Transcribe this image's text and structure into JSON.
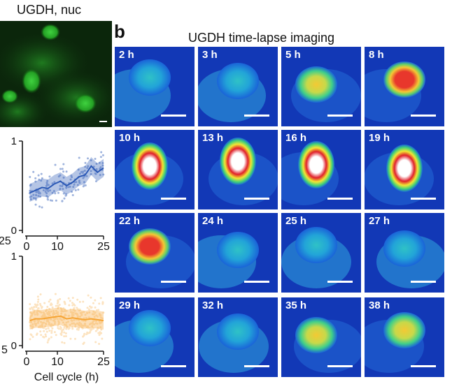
{
  "panel_a": {
    "micrograph_title": "UGDH, nuc"
  },
  "panel_b": {
    "letter": "b",
    "title": "UGDH time-lapse imaging",
    "tiles": [
      {
        "label": "2 h",
        "level": 0.15
      },
      {
        "label": "3 h",
        "level": 0.35
      },
      {
        "label": "5 h",
        "level": 0.55
      },
      {
        "label": "8 h",
        "level": 0.8
      },
      {
        "label": "10 h",
        "level": 1.0
      },
      {
        "label": "13 h",
        "level": 1.0
      },
      {
        "label": "16 h",
        "level": 1.0
      },
      {
        "label": "19 h",
        "level": 1.0
      },
      {
        "label": "22 h",
        "level": 0.85
      },
      {
        "label": "24 h",
        "level": 0.25
      },
      {
        "label": "25 h",
        "level": 0.35
      },
      {
        "label": "27 h",
        "level": 0.4
      },
      {
        "label": "29 h",
        "level": 0.35
      },
      {
        "label": "32 h",
        "level": 0.45
      },
      {
        "label": "35 h",
        "level": 0.5
      },
      {
        "label": "38 h",
        "level": 0.6
      }
    ]
  },
  "chart_data": [
    {
      "type": "scatter",
      "color": "#2b58b5",
      "xlabel": "",
      "xlim": [
        0,
        25
      ],
      "ylim": [
        0,
        1
      ],
      "xticks": [
        "0",
        "10",
        "25"
      ],
      "yticks": [
        "0",
        "1"
      ],
      "trend": {
        "x": [
          1,
          3,
          5,
          7,
          9,
          11,
          13,
          15,
          17,
          19,
          21,
          23,
          25
        ],
        "y": [
          0.42,
          0.45,
          0.48,
          0.47,
          0.52,
          0.55,
          0.5,
          0.54,
          0.6,
          0.62,
          0.72,
          0.65,
          0.7
        ]
      }
    },
    {
      "type": "scatter",
      "color": "#f6a433",
      "xlabel": "Cell cycle (h)",
      "xlim": [
        0,
        25
      ],
      "ylim": [
        0,
        1
      ],
      "xticks": [
        "0",
        "10",
        "25"
      ],
      "yticks": [
        "0",
        "1"
      ],
      "trend": {
        "x": [
          1,
          3,
          5,
          7,
          9,
          11,
          13,
          15,
          17,
          19,
          21,
          23,
          25
        ],
        "y": [
          0.28,
          0.3,
          0.3,
          0.31,
          0.32,
          0.33,
          0.3,
          0.31,
          0.3,
          0.29,
          0.3,
          0.29,
          0.28
        ]
      }
    }
  ],
  "partial_ticks": {
    "top": "25",
    "bottom": "5"
  }
}
